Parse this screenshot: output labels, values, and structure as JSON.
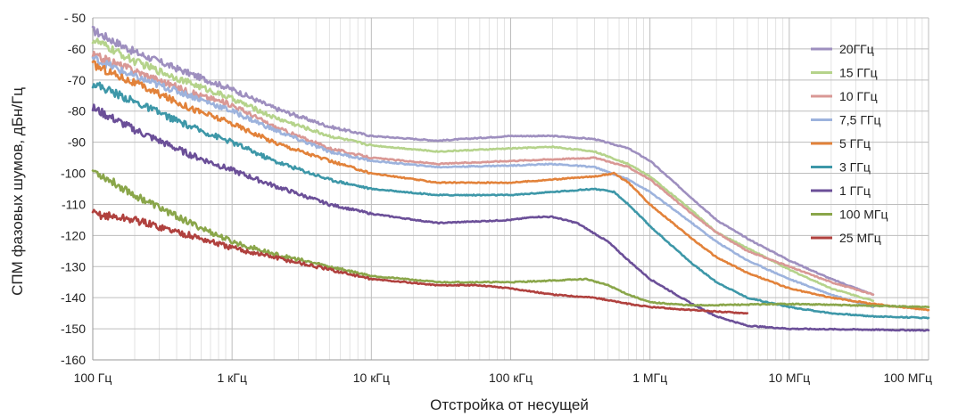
{
  "chart_data": {
    "type": "line",
    "title": "",
    "xlabel": "Отстройка от несущей",
    "ylabel": "СПМ фазовых шумов, дБн/Гц",
    "x_scale": "log",
    "xlim": [
      100,
      100000000
    ],
    "ylim": [
      -160,
      -50
    ],
    "grid": true,
    "legend_position": "right",
    "x_ticks": [
      {
        "value": 100,
        "label": "100 Гц"
      },
      {
        "value": 1000,
        "label": "1 кГц"
      },
      {
        "value": 10000,
        "label": "10 кГц"
      },
      {
        "value": 100000,
        "label": "100 кГц"
      },
      {
        "value": 1000000,
        "label": "1 МГц"
      },
      {
        "value": 10000000,
        "label": "10 МГц"
      },
      {
        "value": 100000000,
        "label": "100 МГц"
      }
    ],
    "y_ticks": [
      {
        "value": -50,
        "label": "- 50"
      },
      {
        "value": -60,
        "label": "-60"
      },
      {
        "value": -70,
        "label": "-70"
      },
      {
        "value": -80,
        "label": "-80"
      },
      {
        "value": -90,
        "label": "-90"
      },
      {
        "value": -100,
        "label": "-100"
      },
      {
        "value": -110,
        "label": "-110"
      },
      {
        "value": -120,
        "label": "-120"
      },
      {
        "value": -130,
        "label": "-130"
      },
      {
        "value": -140,
        "label": "-140"
      },
      {
        "value": -150,
        "label": "-150"
      },
      {
        "value": -160,
        "label": "-160"
      }
    ],
    "series": [
      {
        "name": "20ГГц",
        "color": "#9e8fbf",
        "points": [
          [
            100,
            -54
          ],
          [
            200,
            -61
          ],
          [
            500,
            -68
          ],
          [
            1000,
            -73
          ],
          [
            2000,
            -79
          ],
          [
            5000,
            -85
          ],
          [
            10000,
            -88
          ],
          [
            30000,
            -89.5
          ],
          [
            100000,
            -88
          ],
          [
            200000,
            -88
          ],
          [
            400000,
            -89
          ],
          [
            700000,
            -92
          ],
          [
            1000000,
            -96
          ],
          [
            2000000,
            -108
          ],
          [
            3000000,
            -115
          ],
          [
            5000000,
            -121
          ],
          [
            10000000,
            -128
          ],
          [
            20000000,
            -134
          ],
          [
            40000000,
            -139
          ]
        ]
      },
      {
        "name": "15 ГГц",
        "color": "#b5d38b",
        "points": [
          [
            100,
            -57
          ],
          [
            200,
            -64
          ],
          [
            500,
            -71
          ],
          [
            1000,
            -76
          ],
          [
            2000,
            -82
          ],
          [
            5000,
            -88
          ],
          [
            10000,
            -91
          ],
          [
            30000,
            -93
          ],
          [
            100000,
            -92
          ],
          [
            200000,
            -91.5
          ],
          [
            400000,
            -93
          ],
          [
            700000,
            -97
          ],
          [
            1000000,
            -101
          ],
          [
            2000000,
            -112
          ],
          [
            3000000,
            -119
          ],
          [
            5000000,
            -124
          ],
          [
            10000000,
            -131
          ],
          [
            20000000,
            -137
          ],
          [
            40000000,
            -141
          ]
        ]
      },
      {
        "name": "10 ГГц",
        "color": "#d99895",
        "points": [
          [
            100,
            -62
          ],
          [
            200,
            -67
          ],
          [
            500,
            -74
          ],
          [
            1000,
            -78
          ],
          [
            2000,
            -85
          ],
          [
            5000,
            -92
          ],
          [
            10000,
            -95
          ],
          [
            30000,
            -97
          ],
          [
            100000,
            -96
          ],
          [
            200000,
            -95.5
          ],
          [
            400000,
            -95
          ],
          [
            700000,
            -98
          ],
          [
            1000000,
            -102
          ],
          [
            2000000,
            -113
          ],
          [
            3000000,
            -119
          ],
          [
            5000000,
            -125
          ],
          [
            10000000,
            -130
          ],
          [
            20000000,
            -135
          ],
          [
            40000000,
            -139
          ]
        ]
      },
      {
        "name": "7,5 ГГц",
        "color": "#9db3dd",
        "points": [
          [
            100,
            -63
          ],
          [
            200,
            -69
          ],
          [
            500,
            -75
          ],
          [
            1000,
            -80
          ],
          [
            2000,
            -86
          ],
          [
            5000,
            -93
          ],
          [
            10000,
            -96
          ],
          [
            30000,
            -98
          ],
          [
            100000,
            -97.5
          ],
          [
            200000,
            -97
          ],
          [
            400000,
            -98
          ],
          [
            700000,
            -102
          ],
          [
            1000000,
            -106
          ],
          [
            2000000,
            -116
          ],
          [
            3000000,
            -122
          ],
          [
            5000000,
            -128
          ],
          [
            10000000,
            -134
          ],
          [
            20000000,
            -139
          ],
          [
            40000000,
            -143
          ]
        ]
      },
      {
        "name": "5 ГГц",
        "color": "#e2823a",
        "points": [
          [
            100,
            -65
          ],
          [
            200,
            -71
          ],
          [
            500,
            -79
          ],
          [
            1000,
            -84
          ],
          [
            2000,
            -90
          ],
          [
            5000,
            -96
          ],
          [
            10000,
            -100
          ],
          [
            30000,
            -103
          ],
          [
            100000,
            -103
          ],
          [
            200000,
            -102
          ],
          [
            400000,
            -101
          ],
          [
            550000,
            -100
          ],
          [
            700000,
            -103
          ],
          [
            1000000,
            -110
          ],
          [
            2000000,
            -121
          ],
          [
            3000000,
            -127
          ],
          [
            5000000,
            -132
          ],
          [
            10000000,
            -137
          ],
          [
            20000000,
            -140
          ],
          [
            40000000,
            -142
          ],
          [
            100000000,
            -144
          ]
        ]
      },
      {
        "name": "3 ГГц",
        "color": "#3d97a8",
        "points": [
          [
            100,
            -71
          ],
          [
            200,
            -77
          ],
          [
            500,
            -85
          ],
          [
            1000,
            -90
          ],
          [
            2000,
            -96
          ],
          [
            5000,
            -102
          ],
          [
            10000,
            -105
          ],
          [
            30000,
            -107
          ],
          [
            100000,
            -107
          ],
          [
            200000,
            -106
          ],
          [
            400000,
            -105
          ],
          [
            550000,
            -106
          ],
          [
            700000,
            -110
          ],
          [
            1000000,
            -117
          ],
          [
            2000000,
            -129
          ],
          [
            3000000,
            -135
          ],
          [
            5000000,
            -140
          ],
          [
            10000000,
            -143
          ],
          [
            20000000,
            -145
          ],
          [
            40000000,
            -146
          ],
          [
            100000000,
            -146.5
          ]
        ]
      },
      {
        "name": "1 ГГц",
        "color": "#6b4f98",
        "points": [
          [
            100,
            -79
          ],
          [
            200,
            -86
          ],
          [
            500,
            -94
          ],
          [
            1000,
            -99
          ],
          [
            2000,
            -104
          ],
          [
            5000,
            -110
          ],
          [
            10000,
            -113
          ],
          [
            30000,
            -116
          ],
          [
            100000,
            -115
          ],
          [
            150000,
            -114
          ],
          [
            200000,
            -114
          ],
          [
            300000,
            -116
          ],
          [
            500000,
            -122
          ],
          [
            700000,
            -128
          ],
          [
            1000000,
            -134
          ],
          [
            2000000,
            -142
          ],
          [
            3000000,
            -146
          ],
          [
            5000000,
            -149
          ],
          [
            10000000,
            -150
          ],
          [
            100000000,
            -150.5
          ]
        ]
      },
      {
        "name": "100 МГц",
        "color": "#8aa64a",
        "points": [
          [
            100,
            -99
          ],
          [
            200,
            -107
          ],
          [
            500,
            -116
          ],
          [
            1000,
            -122
          ],
          [
            2000,
            -126
          ],
          [
            5000,
            -130
          ],
          [
            10000,
            -133
          ],
          [
            30000,
            -135
          ],
          [
            100000,
            -135
          ],
          [
            200000,
            -134.5
          ],
          [
            350000,
            -134
          ],
          [
            500000,
            -136
          ],
          [
            700000,
            -139
          ],
          [
            1000000,
            -141.5
          ],
          [
            2000000,
            -142.5
          ],
          [
            10000000,
            -142
          ],
          [
            100000000,
            -143
          ]
        ]
      },
      {
        "name": "25 МГц",
        "color": "#b0413e",
        "points": [
          [
            100,
            -113
          ],
          [
            200,
            -115
          ],
          [
            500,
            -120
          ],
          [
            1000,
            -124
          ],
          [
            2000,
            -127
          ],
          [
            5000,
            -131
          ],
          [
            10000,
            -134
          ],
          [
            30000,
            -136
          ],
          [
            60000,
            -136
          ],
          [
            100000,
            -137
          ],
          [
            200000,
            -139
          ],
          [
            400000,
            -140
          ],
          [
            700000,
            -142
          ],
          [
            1000000,
            -143
          ],
          [
            2000000,
            -144
          ],
          [
            5000000,
            -145
          ]
        ]
      }
    ]
  }
}
